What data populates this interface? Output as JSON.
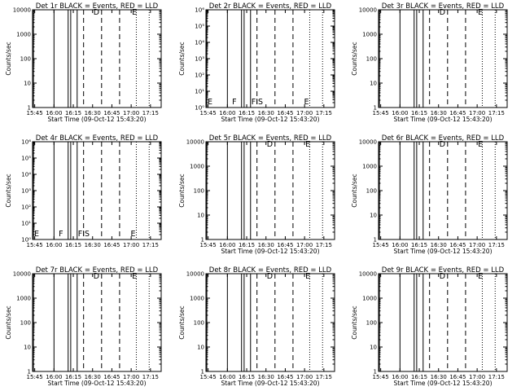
{
  "chart_data": [
    {
      "type": "line",
      "title": "Det 1r BLACK = Events, RED = LLD",
      "xlabel": "Start Time (09-Oct-12 15:43:20)",
      "ylabel": "Counts/sec",
      "xlim": [
        "15:43:20",
        "17:23:20"
      ],
      "ylim": [
        1,
        10000
      ],
      "yscale": "log",
      "xticks": [
        "15:45",
        "16:00",
        "16:15",
        "16:30",
        "16:45",
        "17:00",
        "17:15"
      ],
      "yticks": [
        "1",
        "10",
        "100",
        "1000",
        "10000"
      ],
      "has_data": true,
      "dip": false,
      "flags": [
        {
          "label": "D",
          "time": "16:30"
        },
        {
          "label": "E",
          "time": "17:00"
        }
      ],
      "solid_lines": [
        "15:44",
        "16:00",
        "16:11",
        "16:13",
        "16:18"
      ],
      "dashed_lines": [
        "16:23",
        "16:37",
        "16:51"
      ],
      "dotted_lines": [
        "17:04",
        "17:14"
      ]
    },
    {
      "type": "line",
      "title": "Det 2r BLACK = Events, RED = LLD",
      "xlabel": "Start Time (09-Oct-12 15:43:20)",
      "ylabel": "Counts/sec",
      "xlim": [
        "15:43:20",
        "17:23:20"
      ],
      "ylim": [
        1,
        1000000
      ],
      "yscale": "log",
      "xticks": [
        "15:45",
        "16:00",
        "16:15",
        "16:30",
        "16:45",
        "17:00",
        "17:15"
      ],
      "yticks": [
        "10⁰",
        "10¹",
        "10²",
        "10³",
        "10⁴",
        "10⁵",
        "10⁶"
      ],
      "has_data": false,
      "dip": false,
      "flags": [
        {
          "label": "E",
          "time": "15:44"
        },
        {
          "label": "F",
          "time": "16:03"
        },
        {
          "label": "FIS",
          "time": "16:18"
        },
        {
          "label": "E",
          "time": "16:59"
        }
      ],
      "solid_lines": [
        "15:44",
        "16:00",
        "16:11",
        "16:13",
        "16:18"
      ],
      "dashed_lines": [
        "16:23",
        "16:37",
        "16:51"
      ],
      "dotted_lines": [
        "17:04",
        "17:14"
      ]
    },
    {
      "type": "line",
      "title": "Det 3r BLACK = Events, RED = LLD",
      "xlabel": "Start Time (09-Oct-12 15:43:20)",
      "ylabel": "Counts/sec",
      "xlim": [
        "15:43:20",
        "17:23:20"
      ],
      "ylim": [
        1,
        10000
      ],
      "yscale": "log",
      "xticks": [
        "15:45",
        "16:00",
        "16:15",
        "16:30",
        "16:45",
        "17:00",
        "17:15"
      ],
      "yticks": [
        "1",
        "10",
        "100",
        "1000",
        "10000"
      ],
      "has_data": true,
      "dip": false,
      "flags": [
        {
          "label": "D",
          "time": "16:30"
        },
        {
          "label": "E",
          "time": "17:00"
        }
      ],
      "solid_lines": [
        "15:44",
        "16:00",
        "16:11",
        "16:13",
        "16:18"
      ],
      "dashed_lines": [
        "16:23",
        "16:37",
        "16:51"
      ],
      "dotted_lines": [
        "17:04",
        "17:14"
      ]
    },
    {
      "type": "line",
      "title": "Det 4r BLACK = Events, RED = LLD",
      "xlabel": "",
      "ylabel": "Counts/sec",
      "xlim": [
        "15:43:20",
        "17:23:20"
      ],
      "ylim": [
        1,
        1000000
      ],
      "yscale": "log",
      "xticks": [
        "15:45",
        "16:00",
        "16:15",
        "16:30",
        "16:45",
        "17:00",
        "17:15"
      ],
      "yticks": [
        "10⁰",
        "10¹",
        "10²",
        "10³",
        "10⁴",
        "10⁵",
        "10⁶"
      ],
      "has_data": false,
      "dip": false,
      "flags": [
        {
          "label": "E",
          "time": "15:44"
        },
        {
          "label": "F",
          "time": "16:03"
        },
        {
          "label": "FIS",
          "time": "16:18"
        },
        {
          "label": "E",
          "time": "16:59"
        }
      ],
      "solid_lines": [
        "15:44",
        "16:00",
        "16:11",
        "16:13",
        "16:18"
      ],
      "dashed_lines": [
        "16:23",
        "16:37",
        "16:51"
      ],
      "dotted_lines": [
        "17:04",
        "17:14"
      ]
    },
    {
      "type": "line",
      "title": "Det 5r BLACK = Events, RED = LLD",
      "xlabel": "Start Time (09-Oct-12 15:43:20)",
      "ylabel": "Counts/sec",
      "xlim": [
        "15:43:20",
        "17:23:20"
      ],
      "ylim": [
        1,
        10000
      ],
      "yscale": "log",
      "xticks": [
        "15:45",
        "16:00",
        "16:15",
        "16:30",
        "16:45",
        "17:00",
        "17:15"
      ],
      "yticks": [
        "1",
        "10",
        "100",
        "1000",
        "10000"
      ],
      "has_data": true,
      "dip": false,
      "flags": [
        {
          "label": "D",
          "time": "16:30"
        },
        {
          "label": "E",
          "time": "17:00"
        }
      ],
      "solid_lines": [
        "15:44",
        "16:00",
        "16:11",
        "16:13",
        "16:18"
      ],
      "dashed_lines": [
        "16:23",
        "16:37",
        "16:51"
      ],
      "dotted_lines": [
        "17:04",
        "17:14"
      ]
    },
    {
      "type": "line",
      "title": "Det 6r BLACK = Events, RED = LLD",
      "xlabel": "Start Time (09-Oct-12 15:43:20)",
      "ylabel": "Counts/sec",
      "xlim": [
        "15:43:20",
        "17:23:20"
      ],
      "ylim": [
        1,
        10000
      ],
      "yscale": "log",
      "xticks": [
        "15:45",
        "16:00",
        "16:15",
        "16:30",
        "16:45",
        "17:00",
        "17:15"
      ],
      "yticks": [
        "1",
        "10",
        "100",
        "1000",
        "10000"
      ],
      "has_data": true,
      "dip": false,
      "flags": [
        {
          "label": "D",
          "time": "16:30"
        },
        {
          "label": "E",
          "time": "17:00"
        }
      ],
      "solid_lines": [
        "15:44",
        "16:00",
        "16:11",
        "16:13",
        "16:18"
      ],
      "dashed_lines": [
        "16:23",
        "16:37",
        "16:51"
      ],
      "dotted_lines": [
        "17:04",
        "17:14"
      ]
    },
    {
      "type": "line",
      "title": "Det 7r BLACK = Events, RED = LLD",
      "xlabel": "Start Time (09-Oct-12 15:43:20)",
      "ylabel": "Counts/sec",
      "xlim": [
        "15:43:20",
        "17:23:20"
      ],
      "ylim": [
        1,
        10000
      ],
      "yscale": "log",
      "xticks": [
        "15:45",
        "16:00",
        "16:15",
        "16:30",
        "16:45",
        "17:00",
        "17:15"
      ],
      "yticks": [
        "1",
        "10",
        "100",
        "1000",
        "10000"
      ],
      "has_data": true,
      "dip": false,
      "flags": [
        {
          "label": "D",
          "time": "16:30"
        },
        {
          "label": "E",
          "time": "17:00"
        }
      ],
      "solid_lines": [
        "15:44",
        "16:00",
        "16:11",
        "16:13",
        "16:18"
      ],
      "dashed_lines": [
        "16:23",
        "16:37",
        "16:51"
      ],
      "dotted_lines": [
        "17:04",
        "17:14"
      ]
    },
    {
      "type": "line",
      "title": "Det 8r BLACK = Events, RED = LLD",
      "xlabel": "Start Time (09-Oct-12 15:43:20)",
      "ylabel": "Counts/sec",
      "xlim": [
        "15:43:20",
        "17:23:20"
      ],
      "ylim": [
        1,
        10000
      ],
      "yscale": "log",
      "xticks": [
        "15:45",
        "16:00",
        "16:15",
        "16:30",
        "16:45",
        "17:00",
        "17:15"
      ],
      "yticks": [
        "1",
        "10",
        "100",
        "1000",
        "10000"
      ],
      "has_data": true,
      "dip": true,
      "flags": [
        {
          "label": "D",
          "time": "16:30"
        },
        {
          "label": "E",
          "time": "17:00"
        }
      ],
      "solid_lines": [
        "15:44",
        "16:00",
        "16:11",
        "16:13",
        "16:18"
      ],
      "dashed_lines": [
        "16:23",
        "16:37",
        "16:51"
      ],
      "dotted_lines": [
        "17:04",
        "17:14"
      ]
    },
    {
      "type": "line",
      "title": "Det 9r BLACK = Events, RED = LLD",
      "xlabel": "Start Time (09-Oct-12 15:43:20)",
      "ylabel": "Counts/sec",
      "xlim": [
        "15:43:20",
        "17:23:20"
      ],
      "ylim": [
        1,
        10000
      ],
      "yscale": "log",
      "xticks": [
        "15:45",
        "16:00",
        "16:15",
        "16:30",
        "16:45",
        "17:00",
        "17:15"
      ],
      "yticks": [
        "1",
        "10",
        "100",
        "1000",
        "10000"
      ],
      "has_data": true,
      "dip": false,
      "flags": [
        {
          "label": "D",
          "time": "16:30"
        },
        {
          "label": "E",
          "time": "17:00"
        }
      ],
      "solid_lines": [
        "15:44",
        "16:00",
        "16:11",
        "16:13",
        "16:18"
      ],
      "dashed_lines": [
        "16:23",
        "16:37",
        "16:51"
      ],
      "dotted_lines": [
        "17:04",
        "17:14"
      ]
    }
  ],
  "events_color": "#000000",
  "lld_color": "#d40000"
}
